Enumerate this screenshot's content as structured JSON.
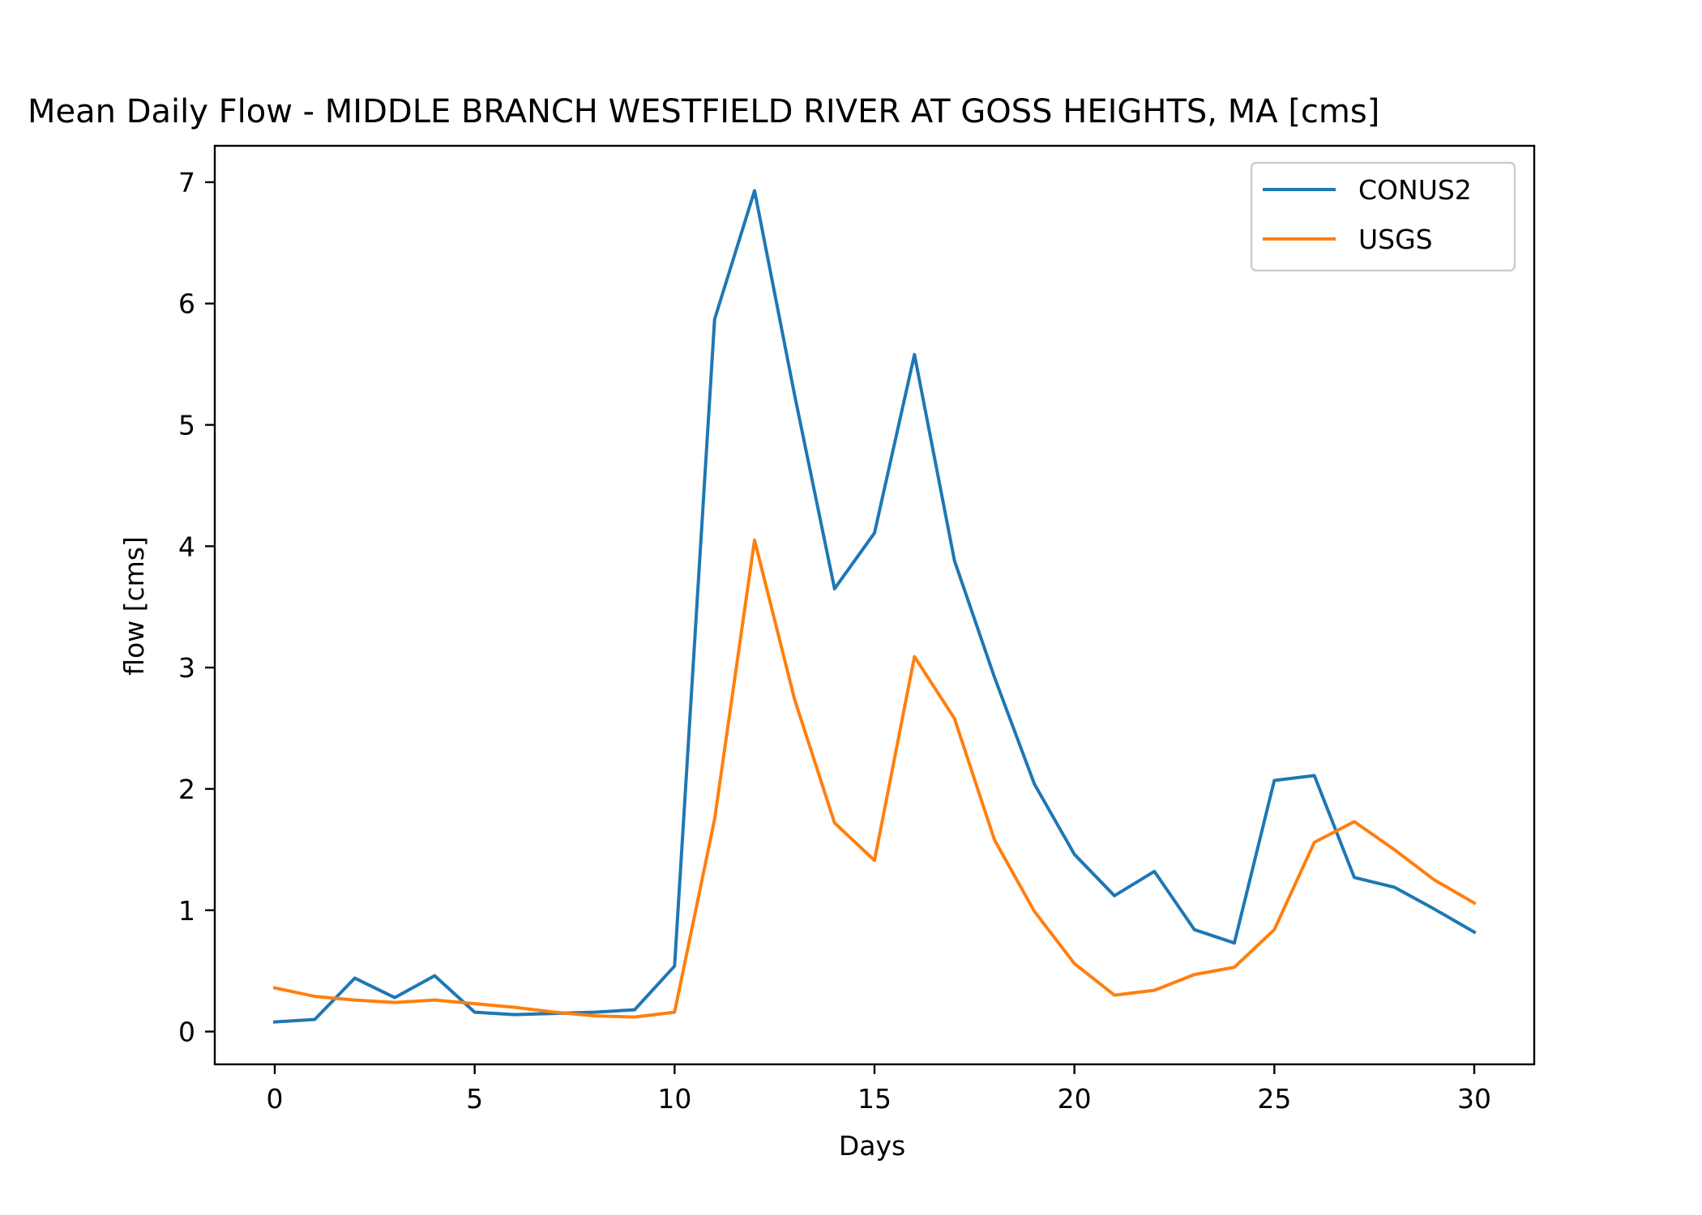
{
  "chart_data": {
    "type": "line",
    "title": "Mean Daily Flow - MIDDLE BRANCH WESTFIELD RIVER AT GOSS HEIGHTS, MA [cms]",
    "xlabel": "Days",
    "ylabel": "flow [cms]",
    "xlim": [
      -1.5,
      31.5
    ],
    "ylim": [
      -0.27,
      7.3
    ],
    "xticks": [
      0,
      5,
      10,
      15,
      20,
      25,
      30
    ],
    "yticks": [
      0,
      1,
      2,
      3,
      4,
      5,
      6,
      7
    ],
    "grid": false,
    "legend_position": "top-right",
    "x": [
      0,
      1,
      2,
      3,
      4,
      5,
      6,
      7,
      8,
      9,
      10,
      11,
      12,
      13,
      14,
      15,
      16,
      17,
      18,
      19,
      20,
      21,
      22,
      23,
      24,
      25,
      26,
      27,
      28,
      29,
      30
    ],
    "series": [
      {
        "name": "CONUS2",
        "color": "#1f77b4",
        "values": [
          0.08,
          0.1,
          0.44,
          0.28,
          0.46,
          0.16,
          0.14,
          0.15,
          0.16,
          0.18,
          0.54,
          5.87,
          6.93,
          5.25,
          3.65,
          4.11,
          5.58,
          3.88,
          2.92,
          2.04,
          1.46,
          1.12,
          1.32,
          0.84,
          0.73,
          2.07,
          2.11,
          1.27,
          1.19,
          1.01,
          0.82
        ]
      },
      {
        "name": "USGS",
        "color": "#ff7f0e",
        "values": [
          0.36,
          0.29,
          0.26,
          0.24,
          0.26,
          0.23,
          0.2,
          0.16,
          0.13,
          0.12,
          0.16,
          1.75,
          4.05,
          2.74,
          1.72,
          1.41,
          3.09,
          2.58,
          1.58,
          0.99,
          0.56,
          0.3,
          0.34,
          0.47,
          0.53,
          0.84,
          1.56,
          1.73,
          1.5,
          1.25,
          1.06
        ]
      }
    ]
  }
}
